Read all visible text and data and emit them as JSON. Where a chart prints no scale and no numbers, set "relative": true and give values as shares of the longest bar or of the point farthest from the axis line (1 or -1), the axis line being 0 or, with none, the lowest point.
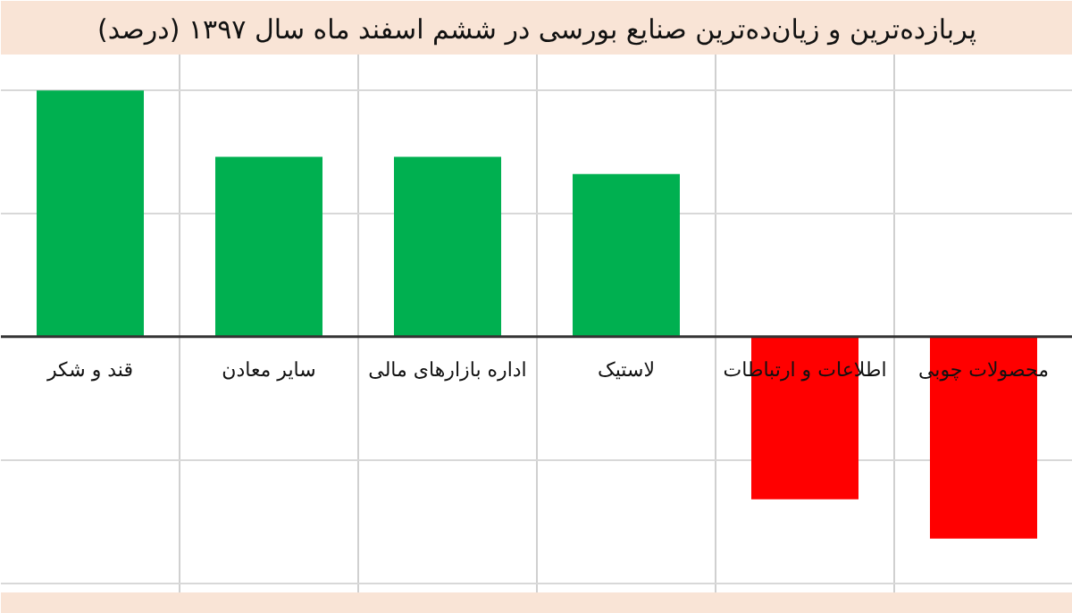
{
  "chart_data": {
    "type": "bar",
    "title": "پربازده‌ترین و زیان‌ده‌ترین صنایع بورسی در ششم اسفند ماه سال ۱۳۹۷ (درصد)",
    "categories": [
      "قند و شکر",
      "سایر معادن",
      "اداره بازارهای مالی",
      "لاستیک",
      "اطلاعات و ارتباطات",
      "محصولات چوبی"
    ],
    "values": [
      1,
      0.73,
      0.73,
      0.66,
      -0.66,
      -0.82
    ],
    "colors": [
      "#00b050",
      "#00b050",
      "#00b050",
      "#00b050",
      "#ff0000",
      "#ff0000"
    ],
    "relative": true,
    "grid": true
  }
}
